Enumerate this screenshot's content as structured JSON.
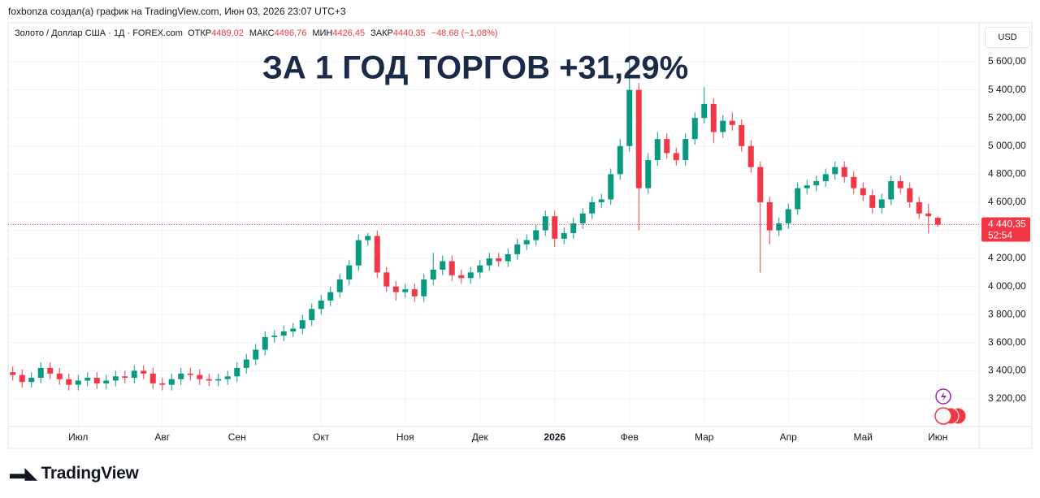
{
  "header": {
    "text": "foxbonza создал(а) график на TradingView.com, Июн 03, 2026 23:07 UTC+3"
  },
  "legend": {
    "symbol": "Золото / Доллар США · 1Д · FOREX.com",
    "fields": [
      {
        "label": "ОТКР",
        "value": "4489,02"
      },
      {
        "label": "МАКС",
        "value": "4496,76"
      },
      {
        "label": "МИН",
        "value": "4426,45"
      },
      {
        "label": "ЗАКР",
        "value": "4440,35"
      }
    ],
    "change": "−48,68 (−1,08%)"
  },
  "currency": "USD",
  "logo": "TradingView",
  "chart_data": {
    "type": "candlestick",
    "annotation": "ЗА 1 ГОД ТОРГОВ +31,29%",
    "up_color": "#089981",
    "down_color": "#f23645",
    "grid": true,
    "categories": [
      null,
      null,
      null,
      null,
      null,
      null,
      null,
      "Июл",
      null,
      null,
      null,
      null,
      null,
      null,
      null,
      null,
      "Авг",
      null,
      null,
      null,
      null,
      null,
      null,
      null,
      "Сен",
      null,
      null,
      null,
      null,
      null,
      null,
      null,
      null,
      "Окт",
      null,
      null,
      null,
      null,
      null,
      null,
      null,
      null,
      "Ноя",
      null,
      null,
      null,
      null,
      null,
      null,
      null,
      "Дек",
      null,
      null,
      null,
      null,
      null,
      null,
      null,
      "2026",
      null,
      null,
      null,
      null,
      null,
      null,
      null,
      "Фев",
      null,
      null,
      null,
      null,
      null,
      null,
      null,
      "Мар",
      null,
      null,
      null,
      null,
      null,
      null,
      null,
      null,
      "Апр",
      null,
      null,
      null,
      null,
      null,
      null,
      null,
      "Май",
      null,
      null,
      null,
      null,
      null,
      null,
      null,
      "Июн"
    ],
    "open": [
      3390,
      3370,
      3320,
      3350,
      3420,
      3380,
      3340,
      3300,
      3330,
      3350,
      3310,
      3330,
      3360,
      3350,
      3400,
      3380,
      3310,
      3300,
      3340,
      3380,
      3370,
      3340,
      3330,
      3340,
      3360,
      3420,
      3480,
      3550,
      3640,
      3650,
      3680,
      3700,
      3760,
      3840,
      3900,
      3960,
      4050,
      4150,
      4330,
      4360,
      4100,
      4000,
      3960,
      3980,
      3930,
      4050,
      4120,
      4180,
      4080,
      4060,
      4100,
      4150,
      4200,
      4180,
      4230,
      4300,
      4330,
      4400,
      4500,
      4340,
      4380,
      4450,
      4520,
      4600,
      4620,
      4800,
      5000,
      5400,
      4700,
      4900,
      5050,
      4950,
      4900,
      5050,
      5200,
      5300,
      5100,
      5180,
      5150,
      5000,
      4850,
      4600,
      4400,
      4450,
      4550,
      4700,
      4720,
      4750,
      4800,
      4850,
      4780,
      4700,
      4650,
      4560,
      4620,
      4750,
      4700,
      4600,
      4520,
      4489.02
    ],
    "high": [
      3430,
      3410,
      3390,
      3460,
      3460,
      3420,
      3380,
      3370,
      3390,
      3390,
      3370,
      3400,
      3400,
      3440,
      3440,
      3420,
      3350,
      3380,
      3420,
      3420,
      3410,
      3380,
      3380,
      3400,
      3460,
      3520,
      3590,
      3680,
      3690,
      3720,
      3740,
      3800,
      3880,
      3940,
      4000,
      4090,
      4190,
      4370,
      4380,
      4400,
      4140,
      4040,
      4020,
      4020,
      4090,
      4240,
      4220,
      4220,
      4120,
      4140,
      4190,
      4240,
      4240,
      4270,
      4340,
      4370,
      4440,
      4540,
      4540,
      4420,
      4490,
      4560,
      4640,
      4660,
      4840,
      5050,
      5600,
      5450,
      4950,
      5100,
      5090,
      4990,
      5090,
      5240,
      5420,
      5340,
      5220,
      5240,
      5190,
      5040,
      4890,
      4640,
      4490,
      4590,
      4740,
      4760,
      4790,
      4840,
      4890,
      4890,
      4820,
      4740,
      4690,
      4660,
      4790,
      4790,
      4740,
      4640,
      4590,
      4496.76
    ],
    "low": [
      3330,
      3280,
      3280,
      3310,
      3340,
      3300,
      3260,
      3260,
      3290,
      3270,
      3270,
      3290,
      3310,
      3310,
      3340,
      3270,
      3260,
      3260,
      3300,
      3330,
      3300,
      3290,
      3290,
      3300,
      3320,
      3380,
      3440,
      3510,
      3600,
      3610,
      3640,
      3660,
      3720,
      3800,
      3860,
      3920,
      4010,
      4110,
      4290,
      4060,
      3960,
      3900,
      3920,
      3890,
      3890,
      4010,
      4080,
      4040,
      4020,
      4020,
      4060,
      4110,
      4140,
      4140,
      4190,
      4260,
      4290,
      4360,
      4280,
      4300,
      4340,
      4410,
      4480,
      4560,
      4580,
      4760,
      4960,
      4400,
      4660,
      4860,
      4910,
      4860,
      4860,
      5010,
      5160,
      5020,
      5060,
      5110,
      4960,
      4810,
      4100,
      4300,
      4360,
      4410,
      4510,
      4660,
      4680,
      4710,
      4760,
      4740,
      4660,
      4610,
      4520,
      4520,
      4580,
      4660,
      4560,
      4480,
      4380,
      4426.45
    ],
    "close": [
      3370,
      3320,
      3350,
      3420,
      3380,
      3340,
      3300,
      3330,
      3350,
      3310,
      3330,
      3360,
      3350,
      3400,
      3380,
      3310,
      3300,
      3340,
      3380,
      3370,
      3340,
      3330,
      3340,
      3360,
      3420,
      3480,
      3550,
      3640,
      3650,
      3680,
      3700,
      3760,
      3840,
      3900,
      3960,
      4050,
      4150,
      4330,
      4360,
      4100,
      4000,
      3960,
      3980,
      3930,
      4050,
      4120,
      4180,
      4080,
      4060,
      4100,
      4150,
      4200,
      4180,
      4230,
      4300,
      4330,
      4400,
      4500,
      4340,
      4380,
      4450,
      4520,
      4600,
      4620,
      4800,
      5000,
      5400,
      4700,
      4900,
      5050,
      4950,
      4900,
      5050,
      5200,
      5300,
      5100,
      5180,
      5150,
      5000,
      4850,
      4600,
      4400,
      4450,
      4550,
      4700,
      4720,
      4750,
      4800,
      4850,
      4780,
      4700,
      4650,
      4560,
      4620,
      4750,
      4700,
      4600,
      4520,
      4500,
      4440.35
    ],
    "last_price": {
      "value": 4440.35,
      "label": "4 440,35"
    },
    "countdown": "52:54",
    "ylim": [
      3003,
      5878
    ],
    "yticks": [
      {
        "value": 3200,
        "label": "3 200,00"
      },
      {
        "value": 3400,
        "label": "3 400,00"
      },
      {
        "value": 3600,
        "label": "3 600,00"
      },
      {
        "value": 3800,
        "label": "3 800,00"
      },
      {
        "value": 4000,
        "label": "4 000,00"
      },
      {
        "value": 4200,
        "label": "4 200,00"
      },
      {
        "value": 4400,
        "label": "4 400,00"
      },
      {
        "value": 4600,
        "label": "4 600,00"
      },
      {
        "value": 4800,
        "label": "4 800,00"
      },
      {
        "value": 5000,
        "label": "5 000,00"
      },
      {
        "value": 5200,
        "label": "5 200,00"
      },
      {
        "value": 5400,
        "label": "5 400,00"
      },
      {
        "value": 5600,
        "label": "5 600,00"
      }
    ]
  }
}
